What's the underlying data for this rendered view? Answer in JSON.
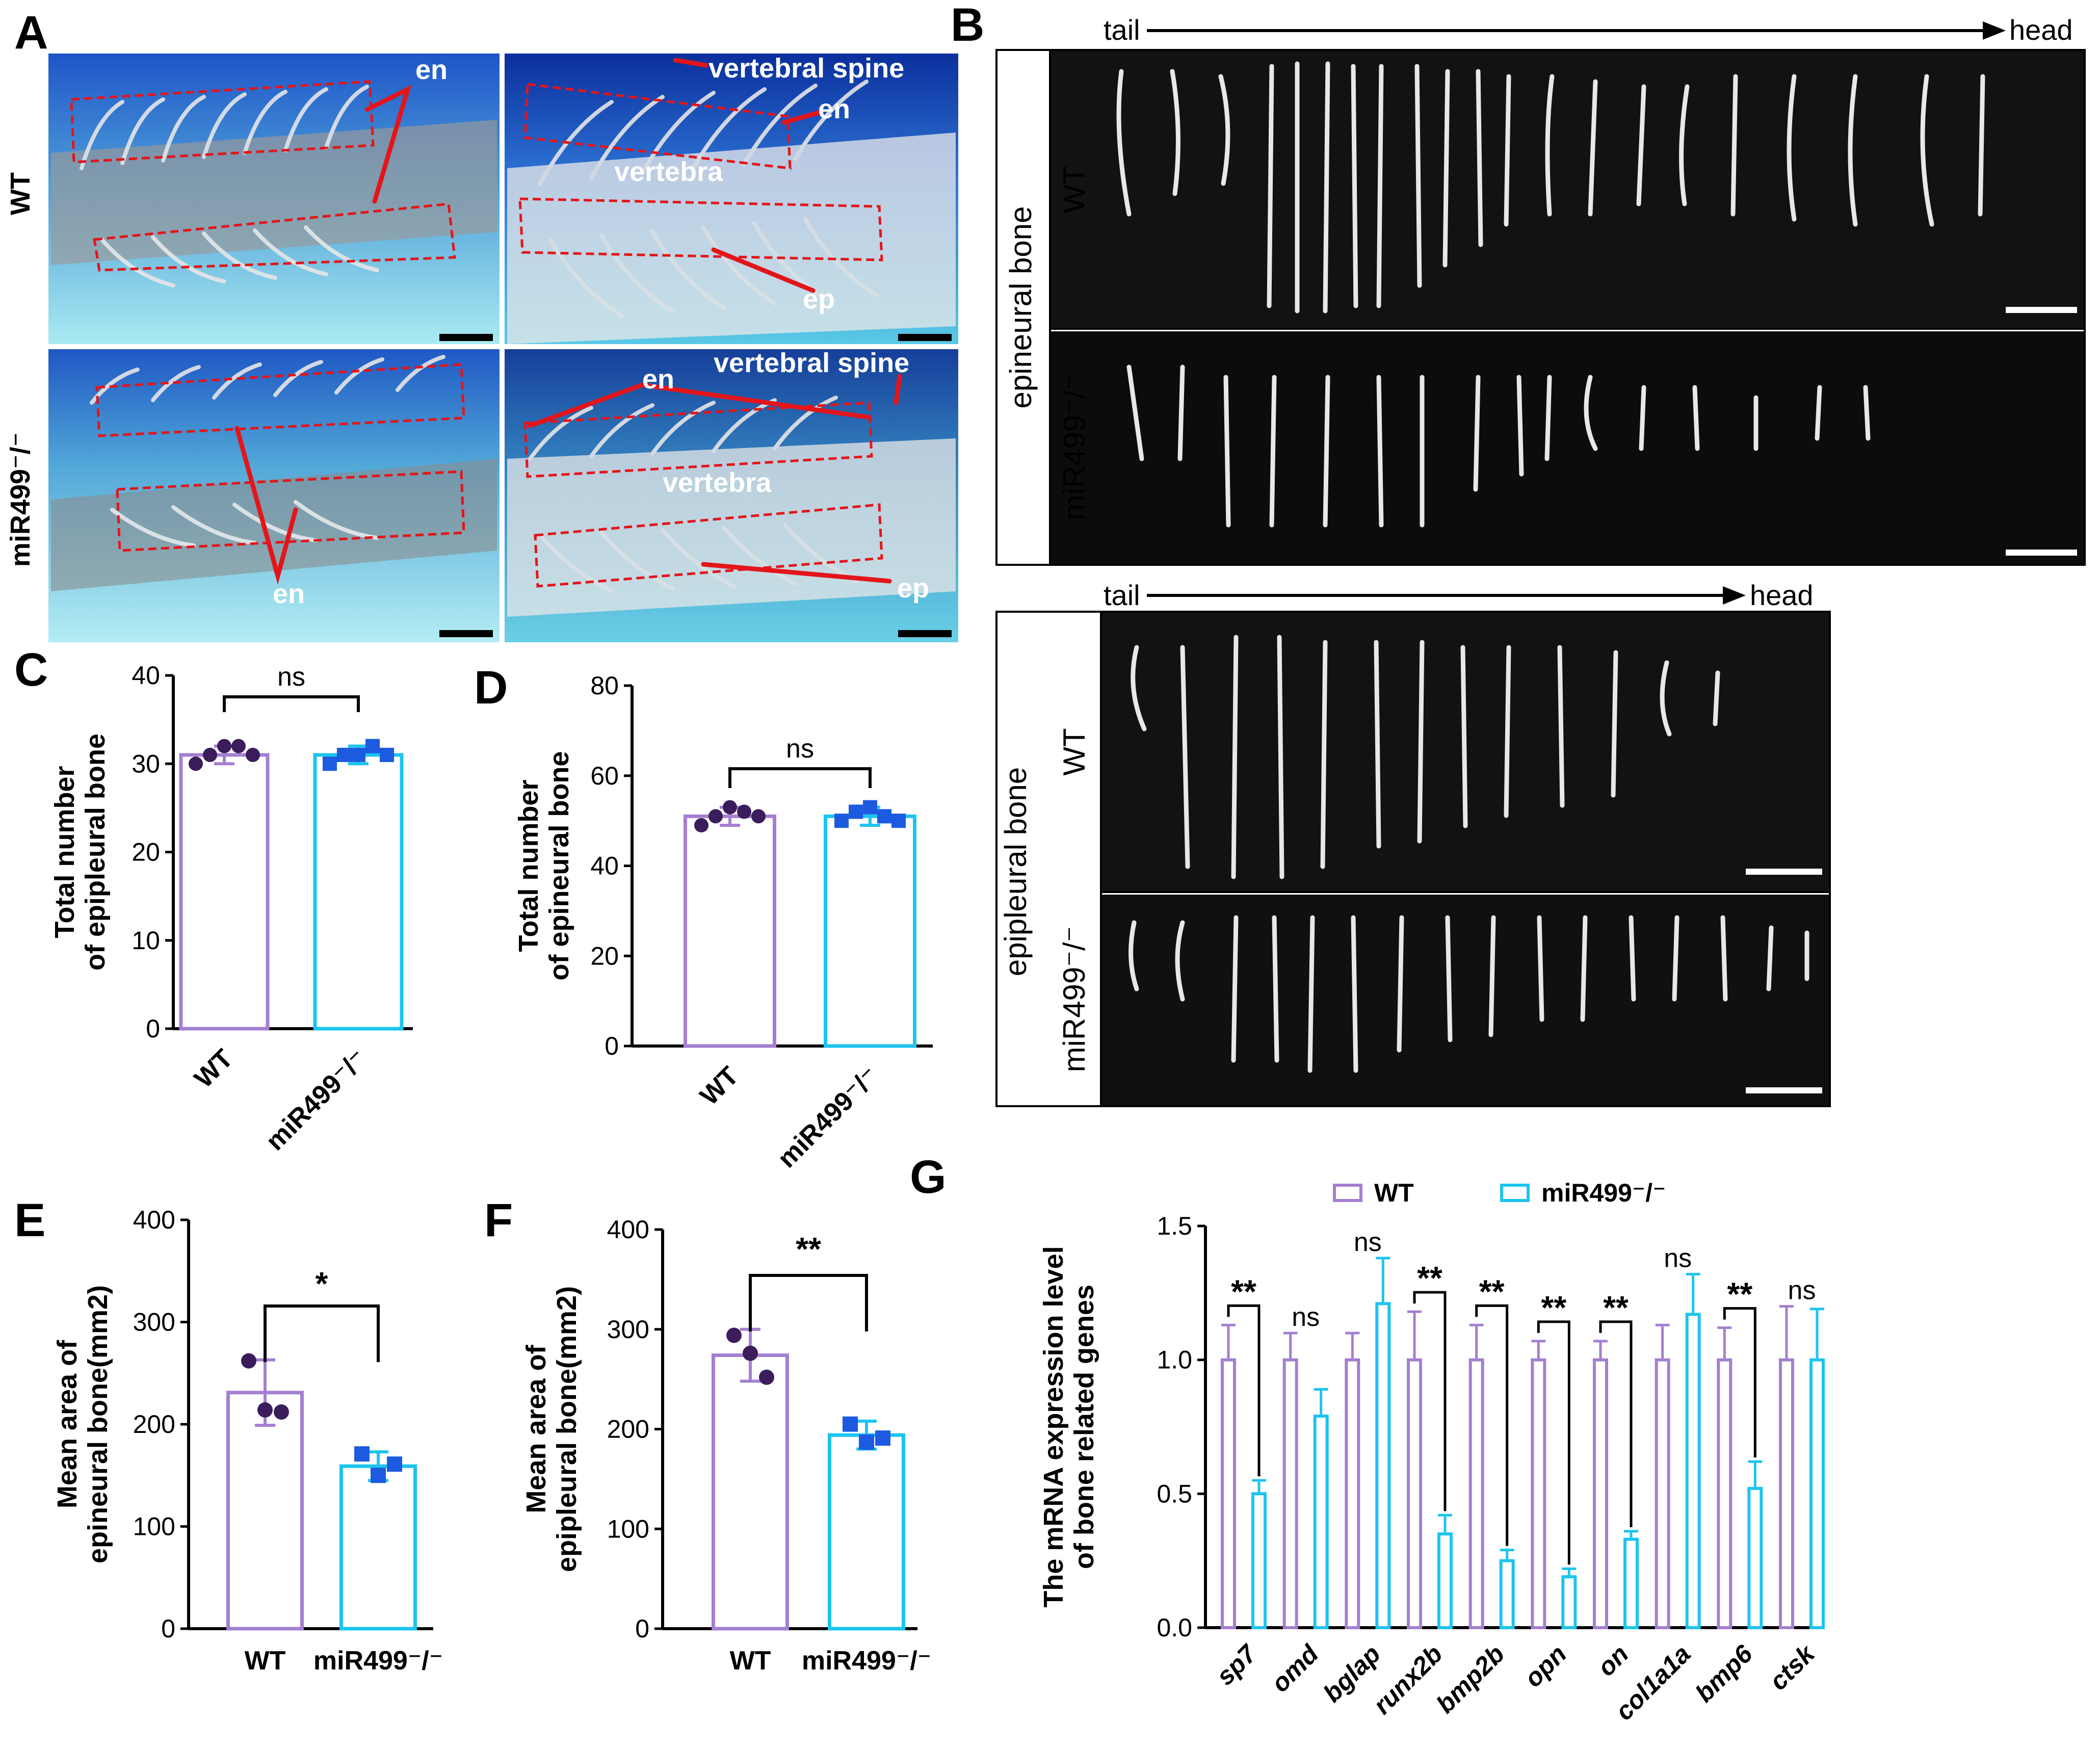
{
  "panel_labels": {
    "a": "A",
    "b": "B",
    "c": "C",
    "d": "D",
    "e": "E",
    "f": "F",
    "g": "G"
  },
  "panel_a": {
    "row_wt": "WT",
    "row_mut": "miR499⁻/⁻",
    "labels": {
      "en": "en",
      "vertebral_spine": "vertebral spine",
      "vertebra": "vertebra",
      "ep": "ep"
    }
  },
  "panel_b": {
    "tail": "tail",
    "head": "head",
    "epineural_bone": "epineural bone",
    "epipleural_bone": "epipleural bone",
    "wt": "WT",
    "mut": "miR499⁻/⁻"
  },
  "chart_data": [
    {
      "id": "C",
      "type": "bar",
      "categories": [
        "WT",
        "miR499⁻/⁻"
      ],
      "values": [
        31,
        31
      ],
      "sd": [
        1,
        1
      ],
      "points": [
        [
          30,
          31,
          32,
          32,
          31
        ],
        [
          30,
          31,
          31,
          32,
          31
        ]
      ],
      "ylabel_lines": [
        "Total number",
        "of epipleural bone"
      ],
      "ylim": [
        0,
        40
      ],
      "yticks": [
        "0",
        "10",
        "20",
        "30",
        "40"
      ],
      "significance": "ns",
      "colors": [
        "#a47fd1",
        "#1cc4ef"
      ]
    },
    {
      "id": "D",
      "type": "bar",
      "categories": [
        "WT",
        "miR499⁻/⁻"
      ],
      "values": [
        51,
        51
      ],
      "sd": [
        2,
        2
      ],
      "points": [
        [
          49,
          51,
          53,
          52,
          51
        ],
        [
          50,
          52,
          53,
          51,
          50
        ]
      ],
      "ylabel_lines": [
        "Total number",
        "of epineural bone"
      ],
      "ylim": [
        0,
        80
      ],
      "yticks": [
        "0",
        "20",
        "40",
        "60",
        "80"
      ],
      "significance": "ns",
      "colors": [
        "#a47fd1",
        "#1cc4ef"
      ]
    },
    {
      "id": "E",
      "type": "bar",
      "categories": [
        "WT",
        "miR499⁻/⁻"
      ],
      "values": [
        231,
        159
      ],
      "sd": [
        32,
        14
      ],
      "points": [
        [
          262,
          214,
          212
        ],
        [
          171,
          150,
          161
        ]
      ],
      "ylabel_lines": [
        "Mean area of",
        "epineural bone(mm2)"
      ],
      "ylim": [
        0,
        400
      ],
      "yticks": [
        "0",
        "100",
        "200",
        "300",
        "400"
      ],
      "significance": "*",
      "colors": [
        "#a47fd1",
        "#1cc4ef"
      ]
    },
    {
      "id": "F",
      "type": "bar",
      "categories": [
        "WT",
        "miR499⁻/⁻"
      ],
      "values": [
        274,
        194
      ],
      "sd": [
        26,
        14
      ],
      "points": [
        [
          294,
          276,
          252
        ],
        [
          205,
          187,
          191
        ]
      ],
      "ylabel_lines": [
        "Mean area of",
        "epipleural bone(mm2)"
      ],
      "ylim": [
        0,
        400
      ],
      "yticks": [
        "0",
        "100",
        "200",
        "300",
        "400"
      ],
      "significance": "**",
      "colors": [
        "#a47fd1",
        "#1cc4ef"
      ]
    },
    {
      "id": "G",
      "type": "bar",
      "categories": [
        "sp7",
        "omd",
        "bglap",
        "runx2b",
        "bmp2b",
        "opn",
        "on",
        "col1a1a",
        "bmp6",
        "ctsk"
      ],
      "series": [
        {
          "name": "WT",
          "values": [
            1.0,
            1.0,
            1.0,
            1.0,
            1.0,
            1.0,
            1.0,
            1.0,
            1.0,
            1.0
          ],
          "sd": [
            0.13,
            0.1,
            0.1,
            0.18,
            0.13,
            0.07,
            0.07,
            0.13,
            0.12,
            0.2
          ],
          "color": "#a47fd1"
        },
        {
          "name": "miR499⁻/⁻",
          "values": [
            0.5,
            0.79,
            1.21,
            0.35,
            0.25,
            0.19,
            0.33,
            1.17,
            0.52,
            1.0
          ],
          "sd": [
            0.05,
            0.1,
            0.17,
            0.07,
            0.04,
            0.03,
            0.03,
            0.15,
            0.1,
            0.19
          ],
          "color": "#1cc4ef"
        }
      ],
      "significance": [
        "**",
        "ns",
        "ns",
        "**",
        "**",
        "**",
        "**",
        "ns",
        "**",
        "ns"
      ],
      "ylabel_lines": [
        "The mRNA expression level",
        "of  bone related genes"
      ],
      "ylim": [
        0,
        1.5
      ],
      "yticks": [
        "0.0",
        "0.5",
        "1.0",
        "1.5"
      ]
    }
  ]
}
